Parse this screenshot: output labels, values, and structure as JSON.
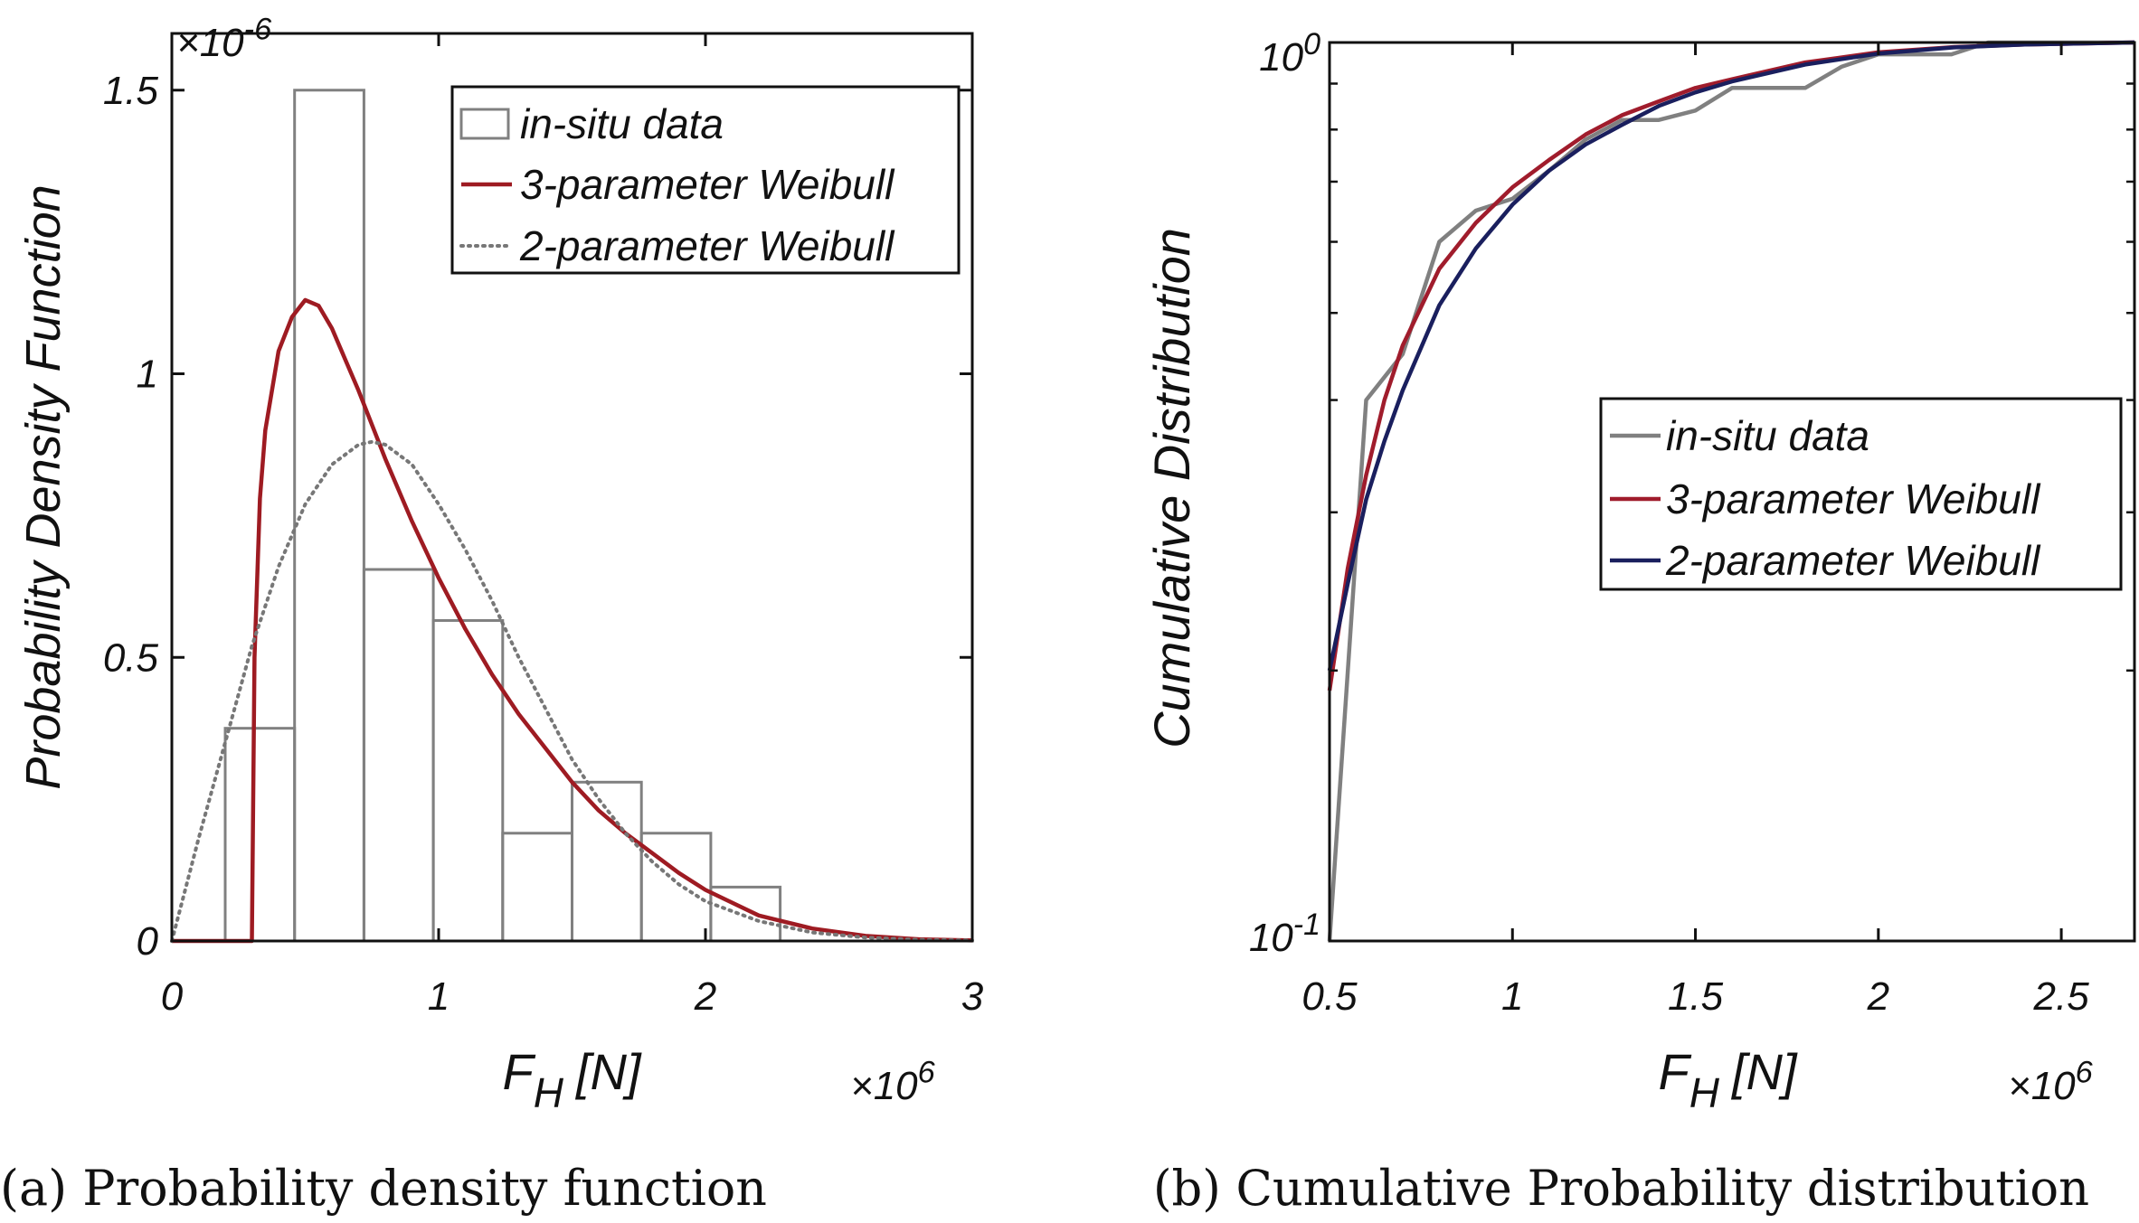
{
  "chart_data": [
    {
      "id": "a",
      "type": "histogram+line",
      "title": "",
      "caption": "(a) Probability density function",
      "xlabel": "F",
      "xlabel_sub": "H",
      "xlabel_unit": "[N]",
      "ylabel": "Probability Density Function",
      "x_multiplier": {
        "base": "×10",
        "exp": "6"
      },
      "y_multiplier": {
        "base": "×10",
        "exp": "-6"
      },
      "xlim": [
        0,
        3
      ],
      "ylim": [
        0,
        1.6
      ],
      "xticks": [
        0,
        1,
        2,
        3
      ],
      "xtick_labels": [
        "0",
        "1",
        "2",
        "3"
      ],
      "yticks": [
        0,
        0.5,
        1,
        1.5
      ],
      "ytick_labels": [
        "0",
        "0.5",
        "1",
        "1.5"
      ],
      "legend_position": "top-right",
      "legend": [
        {
          "label": "in-situ data",
          "style": "box",
          "color": "#808080"
        },
        {
          "label": "3-parameter Weibull",
          "style": "solid",
          "color": "#9e1b22"
        },
        {
          "label": "2-parameter Weibull",
          "style": "dotted",
          "color": "#777777"
        }
      ],
      "histogram": {
        "name": "in-situ data",
        "bin_edges": [
          0.2,
          0.46,
          0.72,
          0.98,
          1.24,
          1.5,
          1.76,
          2.02,
          2.28
        ],
        "values": [
          0.375,
          1.5,
          0.655,
          0.565,
          0.19,
          0.28,
          0.19,
          0.095
        ],
        "color": "#808080"
      },
      "series": [
        {
          "name": "3-parameter Weibull",
          "color": "#9e1b22",
          "x": [
            0.0,
            0.3,
            0.31,
            0.33,
            0.35,
            0.4,
            0.45,
            0.5,
            0.55,
            0.6,
            0.7,
            0.8,
            0.9,
            1.0,
            1.1,
            1.2,
            1.3,
            1.4,
            1.5,
            1.6,
            1.7,
            1.8,
            1.9,
            2.0,
            2.2,
            2.4,
            2.6,
            2.8,
            3.0
          ],
          "values": [
            0.0,
            0.0,
            0.5,
            0.78,
            0.9,
            1.04,
            1.1,
            1.13,
            1.12,
            1.08,
            0.97,
            0.85,
            0.74,
            0.64,
            0.55,
            0.47,
            0.4,
            0.34,
            0.28,
            0.23,
            0.19,
            0.155,
            0.12,
            0.09,
            0.045,
            0.022,
            0.009,
            0.003,
            0.001
          ]
        },
        {
          "name": "2-parameter Weibull",
          "color": "#777777",
          "x": [
            0.0,
            0.1,
            0.2,
            0.3,
            0.4,
            0.5,
            0.6,
            0.7,
            0.75,
            0.8,
            0.9,
            1.0,
            1.1,
            1.2,
            1.3,
            1.4,
            1.5,
            1.6,
            1.7,
            1.8,
            1.9,
            2.0,
            2.2,
            2.4,
            2.6,
            2.8,
            3.0
          ],
          "values": [
            0.0,
            0.18,
            0.35,
            0.52,
            0.66,
            0.77,
            0.84,
            0.875,
            0.88,
            0.875,
            0.84,
            0.77,
            0.69,
            0.6,
            0.5,
            0.41,
            0.32,
            0.25,
            0.19,
            0.14,
            0.1,
            0.07,
            0.035,
            0.015,
            0.006,
            0.002,
            0.001
          ]
        }
      ]
    },
    {
      "id": "b",
      "type": "line",
      "y_scale": "log",
      "title": "",
      "caption": "(b) Cumulative Probability distribution",
      "xlabel": "F",
      "xlabel_sub": "H",
      "xlabel_unit": "[N]",
      "ylabel": "Cumulative Distribution",
      "x_multiplier": {
        "base": "×10",
        "exp": "6"
      },
      "xlim": [
        0.5,
        2.7
      ],
      "ylim": [
        0.1,
        1.0
      ],
      "xticks": [
        0.5,
        1,
        1.5,
        2,
        2.5
      ],
      "xtick_labels": [
        "0.5",
        "1",
        "1.5",
        "2",
        "2.5"
      ],
      "yticks": [
        0.1,
        1.0
      ],
      "ytick_labels": [
        {
          "base": "10",
          "exp": "-1"
        },
        {
          "base": "10",
          "exp": "0"
        }
      ],
      "legend_position": "center-right",
      "legend": [
        {
          "label": "in-situ data",
          "style": "solid",
          "color": "#808080"
        },
        {
          "label": "3-parameter Weibull",
          "style": "solid",
          "color": "#a01c2c"
        },
        {
          "label": "2-parameter Weibull",
          "style": "solid",
          "color": "#1a1f5e"
        }
      ],
      "series": [
        {
          "name": "in-situ data",
          "color": "#808080",
          "x": [
            0.5,
            0.6,
            0.7,
            0.8,
            0.9,
            1.0,
            1.1,
            1.2,
            1.3,
            1.4,
            1.5,
            1.6,
            1.7,
            1.8,
            1.9,
            2.0,
            2.1,
            2.2,
            2.3,
            2.4,
            2.5,
            2.7
          ],
          "values": [
            0.1,
            0.4,
            0.45,
            0.6,
            0.65,
            0.67,
            0.72,
            0.78,
            0.82,
            0.82,
            0.84,
            0.89,
            0.89,
            0.89,
            0.94,
            0.97,
            0.97,
            0.97,
            1.0,
            1.0,
            1.0,
            1.0
          ]
        },
        {
          "name": "3-parameter Weibull",
          "color": "#a01c2c",
          "x": [
            0.5,
            0.55,
            0.6,
            0.65,
            0.7,
            0.8,
            0.9,
            1.0,
            1.1,
            1.2,
            1.3,
            1.4,
            1.5,
            1.6,
            1.8,
            2.0,
            2.2,
            2.4,
            2.7
          ],
          "values": [
            0.19,
            0.26,
            0.33,
            0.4,
            0.46,
            0.56,
            0.63,
            0.69,
            0.74,
            0.79,
            0.83,
            0.86,
            0.89,
            0.91,
            0.95,
            0.975,
            0.988,
            0.995,
            1.0
          ]
        },
        {
          "name": "2-parameter Weibull",
          "color": "#1a1f5e",
          "x": [
            0.5,
            0.55,
            0.6,
            0.65,
            0.7,
            0.8,
            0.9,
            1.0,
            1.1,
            1.2,
            1.3,
            1.4,
            1.5,
            1.6,
            1.8,
            2.0,
            2.2,
            2.4,
            2.7
          ],
          "values": [
            0.2,
            0.25,
            0.31,
            0.36,
            0.41,
            0.51,
            0.59,
            0.66,
            0.72,
            0.77,
            0.81,
            0.85,
            0.88,
            0.905,
            0.945,
            0.972,
            0.987,
            0.995,
            1.0
          ]
        }
      ]
    }
  ]
}
